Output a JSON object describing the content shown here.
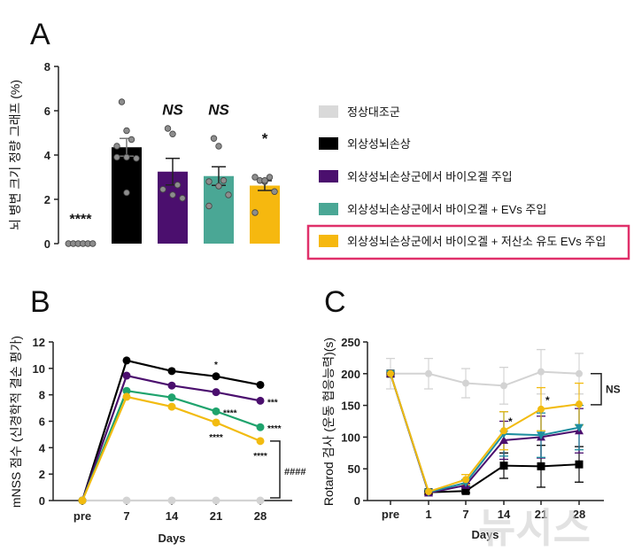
{
  "chart_data": [
    {
      "panel": "A",
      "type": "bar",
      "ylabel": "뇌 병변 크기 정량 그래프 (%)",
      "ylim": [
        0,
        8
      ],
      "yticks": [
        0,
        2,
        4,
        6,
        8
      ],
      "categories": [
        "정상대조군",
        "외상성뇌손상",
        "외상성뇌손상군에서 바이오겔 주입",
        "외상성뇌손상군에서 바이오겔 + EVs 주입",
        "외상성뇌손상군에서 바이오겔 + 저산소 유도 EVs 주입"
      ],
      "colors": [
        "#d9d9d9",
        "#000000",
        "#4b0f6e",
        "#4aa795",
        "#f6b80f"
      ],
      "values": [
        0,
        4.35,
        3.25,
        3.05,
        2.62
      ],
      "errors": [
        0,
        0.4,
        0.6,
        0.42,
        0.22
      ],
      "points": [
        [
          0,
          0,
          0,
          0,
          0,
          0
        ],
        [
          6.4,
          5.1,
          4.7,
          4.4,
          3.9,
          3.85,
          3.9,
          2.3
        ],
        [
          5.2,
          4.95,
          2.65,
          2.45,
          2.2,
          2.05
        ],
        [
          4.75,
          4.4,
          2.85,
          2.8,
          2.6,
          2.2,
          1.7
        ],
        [
          2.85,
          2.8,
          3.0,
          3.0,
          2.85,
          2.35,
          1.4
        ]
      ],
      "annotations": [
        "****",
        "",
        "NS",
        "NS",
        "*"
      ],
      "legend_highlight_index": 4,
      "highlight_color": "#e0306a"
    },
    {
      "panel": "B",
      "type": "line",
      "ylabel": "mNSS 점수 (신경학적 결손 평가)",
      "xlabel": "Days",
      "categories": [
        "pre",
        "7",
        "14",
        "21",
        "28"
      ],
      "ylim": [
        0,
        12
      ],
      "yticks": [
        0,
        2,
        4,
        6,
        8,
        10,
        12
      ],
      "series": [
        {
          "color": "#d3d3d3",
          "values": [
            0,
            0,
            0,
            0,
            0
          ]
        },
        {
          "color": "#000000",
          "values": [
            0,
            10.6,
            9.8,
            9.4,
            8.75
          ]
        },
        {
          "color": "#4b0f6e",
          "values": [
            0,
            9.45,
            8.7,
            8.2,
            7.55
          ]
        },
        {
          "color": "#1fa36d",
          "values": [
            0,
            8.3,
            7.8,
            6.75,
            5.55
          ]
        },
        {
          "color": "#f2bb10",
          "values": [
            0,
            7.85,
            7.1,
            5.9,
            4.5
          ]
        }
      ],
      "annotations": [
        {
          "text": "*",
          "series": 1,
          "x": "21",
          "pos": "above"
        },
        {
          "text": "***",
          "series": 2,
          "x": "28",
          "pos": "right"
        },
        {
          "text": "****",
          "series": 3,
          "x": "21",
          "pos": "right"
        },
        {
          "text": "****",
          "series": 3,
          "x": "28",
          "pos": "right"
        },
        {
          "text": "****",
          "series": 4,
          "x": "21",
          "pos": "below"
        },
        {
          "text": "****",
          "series": 4,
          "x": "28",
          "pos": "below"
        }
      ],
      "bracket_label": "####"
    },
    {
      "panel": "C",
      "type": "line",
      "ylabel": "Rotarod 검사 (운동 협응능력)(s)",
      "xlabel": "Days",
      "categories": [
        "pre",
        "1",
        "7",
        "14",
        "21",
        "28"
      ],
      "ylim": [
        0,
        250
      ],
      "yticks": [
        0,
        50,
        100,
        150,
        200,
        250
      ],
      "series": [
        {
          "color": "#d3d3d3",
          "marker": "circle",
          "values": [
            200,
            200,
            185,
            181,
            203,
            200
          ],
          "errors": [
            24,
            24,
            23,
            29,
            35,
            32
          ]
        },
        {
          "color": "#000000",
          "marker": "square",
          "values": [
            200,
            13,
            15,
            55,
            54,
            57
          ],
          "errors": [
            0,
            2,
            3,
            20,
            33,
            28
          ]
        },
        {
          "color": "#4b0f6e",
          "marker": "triangle-up",
          "values": [
            200,
            12,
            24,
            95,
            100,
            110
          ],
          "errors": [
            0,
            2,
            3,
            30,
            33,
            35
          ]
        },
        {
          "color": "#1f8fa0",
          "marker": "triangle-down",
          "values": [
            200,
            13,
            28,
            105,
            103,
            115
          ],
          "errors": [
            0,
            2,
            5,
            35,
            35,
            35
          ]
        },
        {
          "color": "#f2bb10",
          "marker": "circle",
          "values": [
            200,
            14,
            33,
            110,
            144,
            152
          ],
          "errors": [
            0,
            3,
            8,
            30,
            34,
            33
          ]
        }
      ],
      "annotations": [
        {
          "text": "*",
          "series": 4,
          "x": "14"
        },
        {
          "text": "*",
          "series": 4,
          "x": "21"
        }
      ],
      "bracket_label": "NS"
    }
  ],
  "panels": {
    "a": "A",
    "b": "B",
    "c": "C"
  },
  "watermark": "뉴시스"
}
